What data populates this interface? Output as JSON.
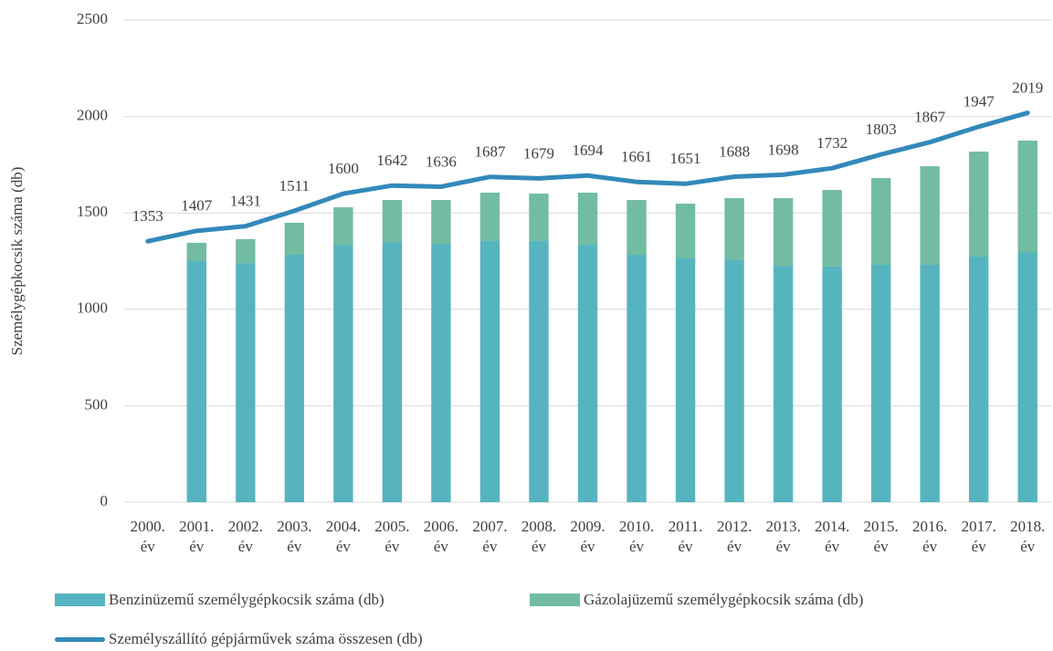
{
  "chart_data": {
    "type": "bar-line",
    "y_label": "Személygépkocsik száma (db)",
    "categories": [
      "2000. év",
      "2001. év",
      "2002. év",
      "2003. év",
      "2004. év",
      "2005. év",
      "2006. év",
      "2007. év",
      "2008. év",
      "2009. év",
      "2010. év",
      "2011. év",
      "2012. év",
      "2013. év",
      "2014. év",
      "2015. év",
      "2016. év",
      "2017. év",
      "2018. év"
    ],
    "series": [
      {
        "name": "Benzinüzemű személygépkocsik száma (db)",
        "kind": "bar",
        "color": "#56b4c1",
        "values": [
          null,
          1250,
          1240,
          1283,
          1335,
          1349,
          1340,
          1354,
          1354,
          1335,
          1283,
          1264,
          1255,
          1226,
          1222,
          1231,
          1231,
          1274,
          1297
        ]
      },
      {
        "name": "Gázolajüzemű személygépkocsik száma (db)",
        "kind": "bar",
        "color": "#72bca2",
        "values": [
          null,
          95,
          124,
          166,
          194,
          218,
          227,
          251,
          246,
          270,
          284,
          284,
          322,
          351,
          397,
          450,
          511,
          544,
          578
        ]
      },
      {
        "name": "Személyszállító gépjárművek száma összesen (db)",
        "kind": "line",
        "color": "#3289ba",
        "values": [
          1353,
          1407,
          1431,
          1511,
          1600,
          1642,
          1636,
          1687,
          1679,
          1694,
          1661,
          1651,
          1688,
          1698,
          1732,
          1803,
          1867,
          1947,
          2019
        ]
      }
    ],
    "ylim": [
      0,
      2500
    ],
    "yticks": [
      0,
      500,
      1000,
      1500,
      2000,
      2500
    ],
    "grid": true,
    "legend": "bottom"
  }
}
